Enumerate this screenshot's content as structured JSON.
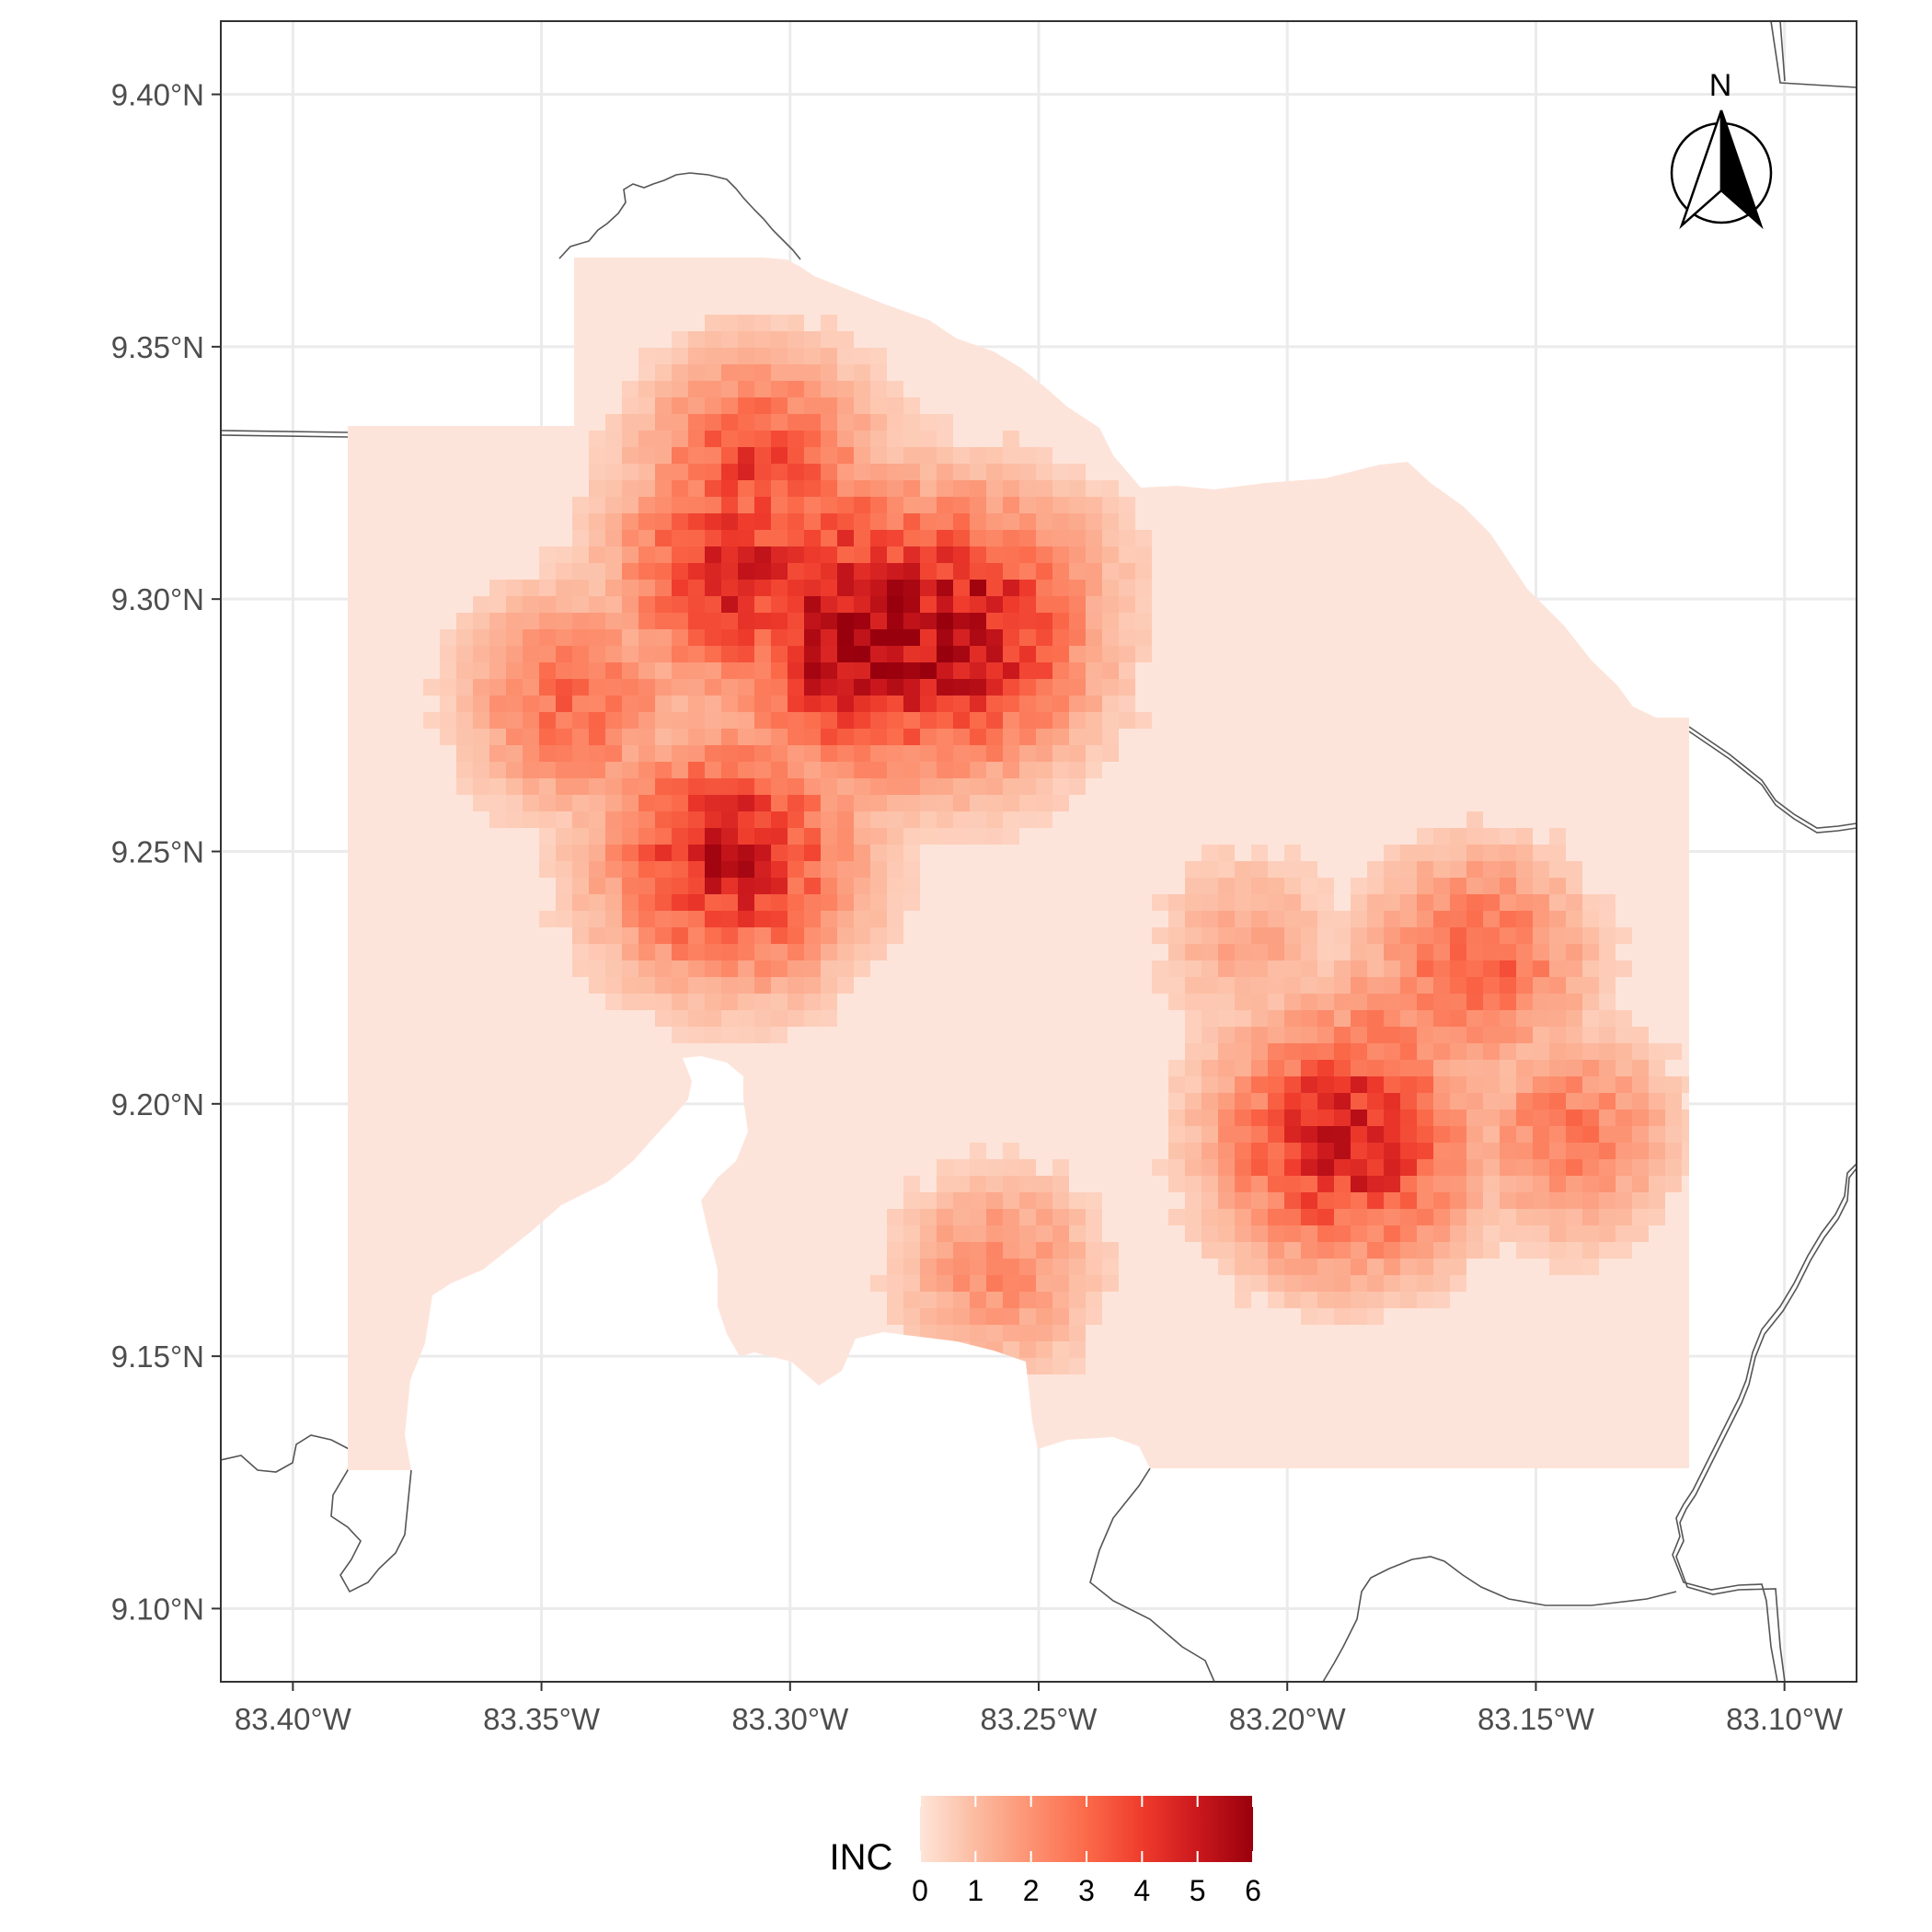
{
  "map": {
    "y_axis": {
      "ticks": [
        {
          "value": 9.4,
          "label": "9.40°N"
        },
        {
          "value": 9.35,
          "label": "9.35°N"
        },
        {
          "value": 9.3,
          "label": "9.30°N"
        },
        {
          "value": 9.25,
          "label": "9.25°N"
        },
        {
          "value": 9.2,
          "label": "9.20°N"
        },
        {
          "value": 9.15,
          "label": "9.15°N"
        },
        {
          "value": 9.1,
          "label": "9.10°N"
        }
      ]
    },
    "x_axis": {
      "ticks": [
        {
          "value": -83.4,
          "label": "83.40°W"
        },
        {
          "value": -83.35,
          "label": "83.35°W"
        },
        {
          "value": -83.3,
          "label": "83.30°W"
        },
        {
          "value": -83.25,
          "label": "83.25°W"
        },
        {
          "value": -83.2,
          "label": "83.20°W"
        },
        {
          "value": -83.15,
          "label": "83.15°W"
        },
        {
          "value": -83.1,
          "label": "83.10°W"
        }
      ]
    },
    "lon_range": [
      -83.4145,
      -83.0855
    ],
    "lat_range": [
      9.0855,
      9.4145
    ],
    "north_arrow": {
      "label": "N"
    },
    "legend": {
      "title": "INC",
      "ticks": [
        "0",
        "1",
        "2",
        "3",
        "4",
        "5",
        "6"
      ],
      "range": [
        0,
        6
      ],
      "position": "bottom"
    },
    "colors": {
      "scale": [
        "#fee5d9",
        "#fcbba1",
        "#fc9272",
        "#fb6a4a",
        "#ef3b2c",
        "#cb181d",
        "#99000d"
      ],
      "background_fill": "#fde4da",
      "border_lines": "#555555",
      "grid": "#ebebeb"
    },
    "hotspots": [
      {
        "lon": -83.306,
        "lat": 9.325,
        "value": 3.8
      },
      {
        "lon": -83.29,
        "lat": 9.305,
        "value": 4.0
      },
      {
        "lon": -83.31,
        "lat": 9.305,
        "value": 4.5
      },
      {
        "lon": -83.284,
        "lat": 9.293,
        "value": 6.0
      },
      {
        "lon": -83.268,
        "lat": 9.293,
        "value": 5.6
      },
      {
        "lon": -83.343,
        "lat": 9.28,
        "value": 3.0
      },
      {
        "lon": -83.312,
        "lat": 9.249,
        "value": 4.8
      },
      {
        "lon": -83.25,
        "lat": 9.305,
        "value": 2.0
      },
      {
        "lon": -83.18,
        "lat": 9.21,
        "value": 2.6
      },
      {
        "lon": -83.162,
        "lat": 9.228,
        "value": 3.2
      },
      {
        "lon": -83.188,
        "lat": 9.193,
        "value": 4.8
      },
      {
        "lon": -83.143,
        "lat": 9.194,
        "value": 2.6
      },
      {
        "lon": -83.258,
        "lat": 9.167,
        "value": 2.2
      },
      {
        "lon": -83.208,
        "lat": 9.232,
        "value": 1.5
      }
    ]
  }
}
